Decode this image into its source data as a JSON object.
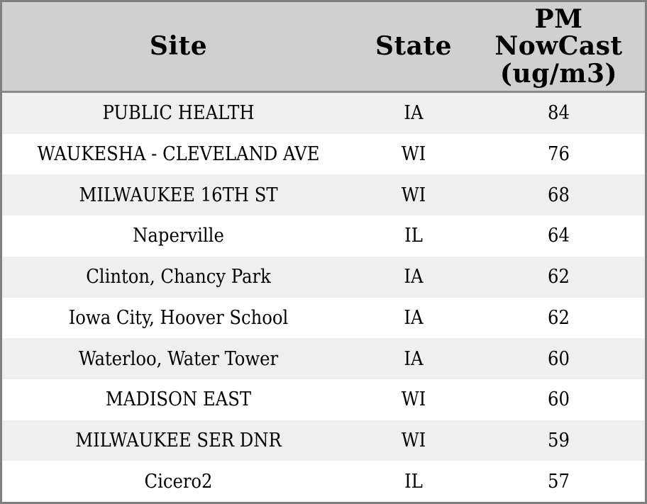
{
  "colors": {
    "header_background": "#d0d0d0",
    "header_divider": "#888888",
    "outer_border": "#808080",
    "row_stripe": "#efefef",
    "row_plain": "#ffffff",
    "text": "#000000"
  },
  "chart_data": {
    "type": "table",
    "columns": [
      {
        "key": "site",
        "label": "Site"
      },
      {
        "key": "state",
        "label": "State"
      },
      {
        "key": "pm_nowcast",
        "label": "PM NowCast (ug/m3)",
        "lines": [
          "PM",
          "NowCast",
          "(ug/m3)"
        ]
      }
    ],
    "rows": [
      {
        "site": "PUBLIC HEALTH",
        "state": "IA",
        "pm_nowcast": 84
      },
      {
        "site": "WAUKESHA - CLEVELAND AVE",
        "state": "WI",
        "pm_nowcast": 76
      },
      {
        "site": "MILWAUKEE 16TH ST",
        "state": "WI",
        "pm_nowcast": 68
      },
      {
        "site": "Naperville",
        "state": "IL",
        "pm_nowcast": 64
      },
      {
        "site": "Clinton, Chancy Park",
        "state": "IA",
        "pm_nowcast": 62
      },
      {
        "site": "Iowa City, Hoover School",
        "state": "IA",
        "pm_nowcast": 62
      },
      {
        "site": "Waterloo, Water Tower",
        "state": "IA",
        "pm_nowcast": 60
      },
      {
        "site": "MADISON EAST",
        "state": "WI",
        "pm_nowcast": 60
      },
      {
        "site": "MILWAUKEE SER DNR",
        "state": "WI",
        "pm_nowcast": 59
      },
      {
        "site": "Cicero2",
        "state": "IL",
        "pm_nowcast": 57
      }
    ]
  }
}
